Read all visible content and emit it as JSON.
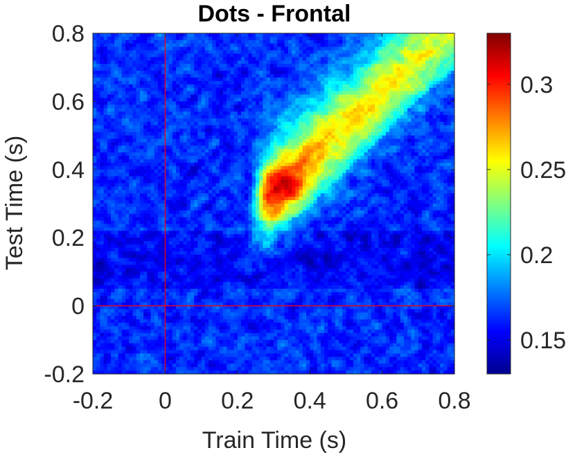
{
  "chart_data": {
    "type": "heatmap",
    "title": "Dots - Frontal",
    "xlabel": "Train Time (s)",
    "ylabel": "Test Time (s)",
    "xlim": [
      -0.2,
      0.8
    ],
    "ylim": [
      -0.2,
      0.8
    ],
    "x_ticks": [
      "-0.2",
      "0",
      "0.2",
      "0.4",
      "0.6",
      "0.8"
    ],
    "y_ticks": [
      "-0.2",
      "0",
      "0.2",
      "0.4",
      "0.6",
      "0.8"
    ],
    "x_tick_values": [
      -0.2,
      0,
      0.2,
      0.4,
      0.6,
      0.8
    ],
    "y_tick_values": [
      -0.2,
      0,
      0.2,
      0.4,
      0.6,
      0.8
    ],
    "colorbar": {
      "colormap": "jet",
      "clim": [
        0.13,
        0.33
      ],
      "ticks": [
        "0.15",
        "0.2",
        "0.25",
        "0.3"
      ],
      "tick_values": [
        0.15,
        0.2,
        0.25,
        0.3
      ]
    },
    "reference_lines": {
      "x": 0,
      "y": 0,
      "color": "#ff0000"
    },
    "surface": {
      "baseline": 0.163,
      "peak_value": 0.29,
      "peak_location": [
        0.33,
        0.35
      ],
      "diagonal_band": {
        "x_start": 0.25,
        "x_end": 0.8,
        "value_start": 0.255,
        "value_end": 0.225
      }
    },
    "grid": false
  }
}
